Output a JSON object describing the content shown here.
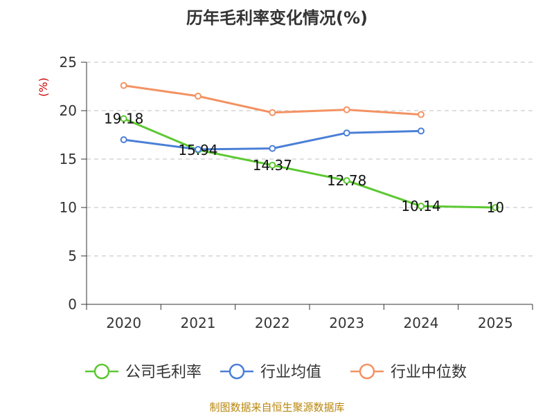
{
  "title": "历年毛利率变化情况(%)",
  "footer": "制图数据来自恒生聚源数据库",
  "colors": {
    "gross_margin": "#5cc831",
    "industry_avg": "#4a7fd6",
    "industry_median": "#f39262",
    "grid": "#cccccc",
    "axis": "#333333"
  },
  "chart_data": {
    "type": "line",
    "title": "历年毛利率变化情况(%)",
    "ylabel": "(%)",
    "xlabel": "",
    "categories": [
      "2020",
      "2021",
      "2022",
      "2023",
      "2024",
      "2025"
    ],
    "ylim": [
      0,
      25
    ],
    "yticks": [
      0,
      5,
      10,
      15,
      20,
      25
    ],
    "grid": true,
    "legend_position": "bottom",
    "series": [
      {
        "name": "公司毛利率",
        "color_key": "gross_margin",
        "values": [
          19.18,
          15.94,
          14.37,
          12.78,
          10.14,
          10
        ],
        "labels": [
          "19.18",
          "15.94",
          "14.37",
          "12.78",
          "10.14",
          "10"
        ]
      },
      {
        "name": "行业均值",
        "color_key": "industry_avg",
        "values": [
          17.0,
          16.0,
          16.1,
          17.7,
          17.9,
          null
        ],
        "labels": []
      },
      {
        "name": "行业中位数",
        "color_key": "industry_median",
        "values": [
          22.6,
          21.5,
          19.8,
          20.1,
          19.6,
          null
        ],
        "labels": []
      }
    ]
  }
}
